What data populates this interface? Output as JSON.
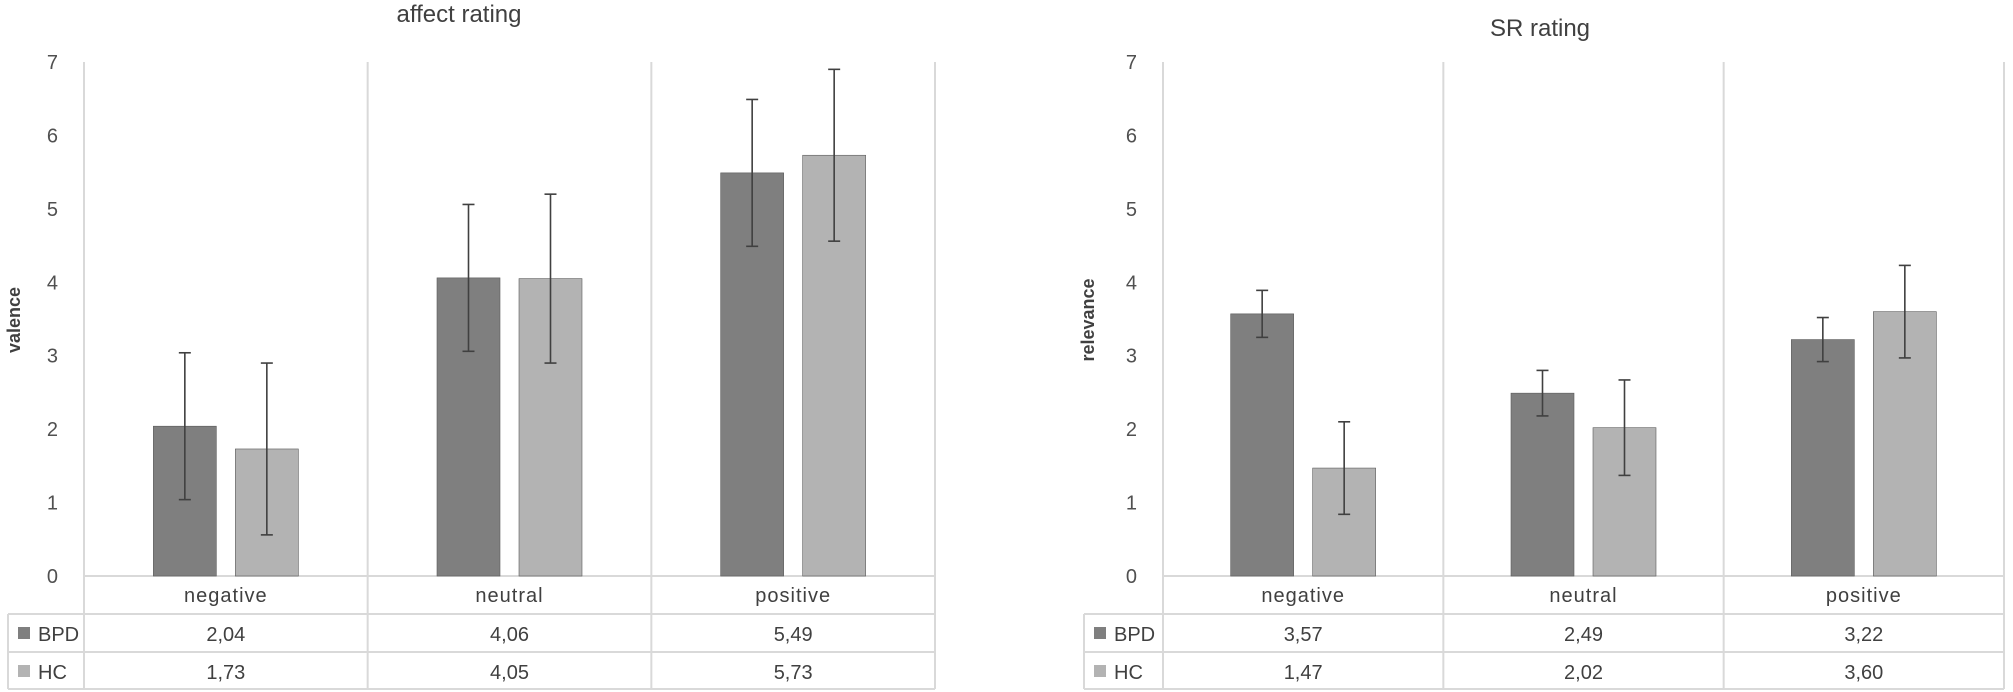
{
  "chart_data": [
    {
      "type": "bar",
      "title": "affect rating",
      "ylabel": "valence",
      "xlabel": "",
      "ylim": [
        0,
        7
      ],
      "yticks": [
        0,
        1,
        2,
        3,
        4,
        5,
        6,
        7
      ],
      "categories": [
        "negative",
        "neutral",
        "positive"
      ],
      "grid": "vertical separators between categories",
      "legend": "data table below plot",
      "series": [
        {
          "name": "BPD",
          "values": [
            2.04,
            4.06,
            5.49
          ],
          "labels": [
            "2,04",
            "4,06",
            "5,49"
          ],
          "errors": [
            1.0,
            1.0,
            1.0
          ],
          "color": "#7f7f7f"
        },
        {
          "name": "HC",
          "values": [
            1.73,
            4.05,
            5.73
          ],
          "labels": [
            "1,73",
            "4,05",
            "5,73"
          ],
          "errors": [
            1.17,
            1.15,
            1.17
          ],
          "color": "#b3b3b3"
        }
      ]
    },
    {
      "type": "bar",
      "title": "SR rating",
      "ylabel": "relevance",
      "xlabel": "",
      "ylim": [
        0,
        7
      ],
      "yticks": [
        0,
        1,
        2,
        3,
        4,
        5,
        6,
        7
      ],
      "categories": [
        "negative",
        "neutral",
        "positive"
      ],
      "grid": "vertical separators between categories",
      "legend": "data table below plot",
      "series": [
        {
          "name": "BPD",
          "values": [
            3.57,
            2.49,
            3.22
          ],
          "labels": [
            "3,57",
            "2,49",
            "3,22"
          ],
          "errors": [
            0.32,
            0.31,
            0.3
          ],
          "color": "#7f7f7f"
        },
        {
          "name": "HC",
          "values": [
            1.47,
            2.02,
            3.6
          ],
          "labels": [
            "1,47",
            "2,02",
            "3,60"
          ],
          "errors": [
            0.63,
            0.65,
            0.63
          ],
          "color": "#b3b3b3"
        }
      ]
    }
  ]
}
